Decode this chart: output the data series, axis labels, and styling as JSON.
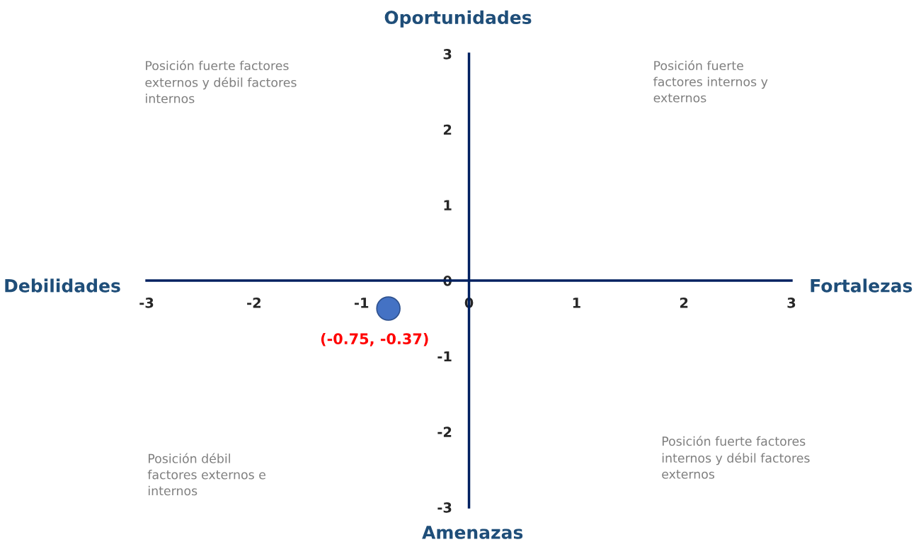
{
  "chart_data": {
    "type": "scatter",
    "x": [
      -0.75
    ],
    "values": [
      -0.37
    ],
    "color": "#4472c4",
    "marker": "circle",
    "xlim": [
      -3,
      3
    ],
    "ylim": [
      -3,
      3
    ],
    "xticks": [
      -3,
      -2,
      -1,
      0,
      1,
      2,
      3
    ],
    "yticks": [
      -3,
      -2,
      -1,
      0,
      1,
      2,
      3
    ],
    "grid": false,
    "annotations": [
      {
        "text": "(-0.75, -0.37)",
        "x": -0.75,
        "y": -0.37
      },
      "Oportunidades",
      "Debilidades",
      "Fortalezas",
      "Amenazas",
      "Posición fuerte factores\nexternos y débil factores\ninternos",
      "Posición fuerte\nfactores internos y\nexternos",
      "Posición débil\nfactores externos e\ninternos",
      "Posición fuerte factores\ninternos y débil factores\nexternos"
    ]
  }
}
